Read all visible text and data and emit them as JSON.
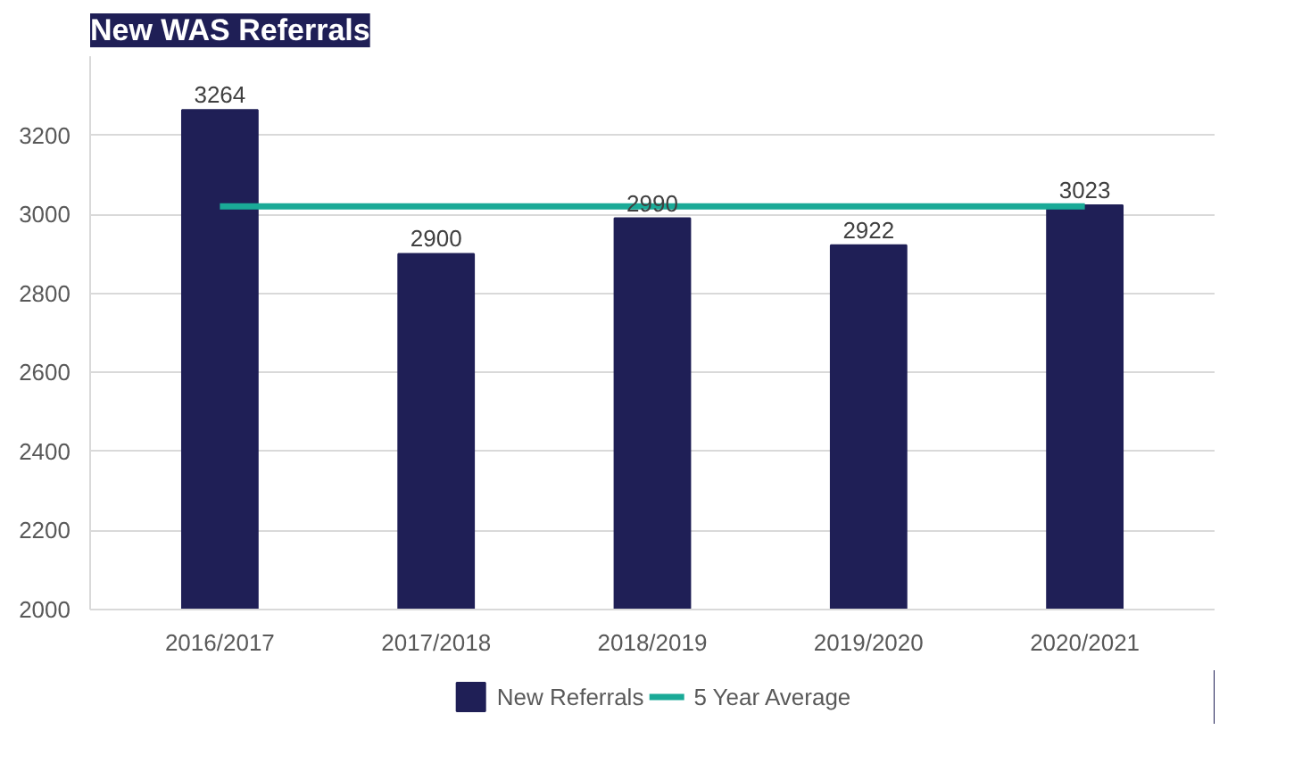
{
  "chart_data": {
    "type": "bar",
    "title": "New WAS Referrals",
    "categories": [
      "2016/2017",
      "2017/2018",
      "2018/2019",
      "2019/2020",
      "2020/2021"
    ],
    "series": [
      {
        "name": "New Referrals",
        "color": "#1f1f56",
        "values": [
          3264,
          2900,
          2990,
          2922,
          3023
        ],
        "value_labels": [
          "3264",
          "2900",
          "2990",
          "2922",
          "3023"
        ]
      },
      {
        "name": "5 Year Average",
        "type": "line",
        "color": "#1aaa97",
        "values": [
          3020,
          3020,
          3020,
          3020,
          3020
        ]
      }
    ],
    "ylim": [
      2000,
      3400
    ],
    "yticks": [
      2000,
      2200,
      2400,
      2600,
      2800,
      3000,
      3200
    ],
    "grid": "y",
    "legend": "bottom"
  }
}
